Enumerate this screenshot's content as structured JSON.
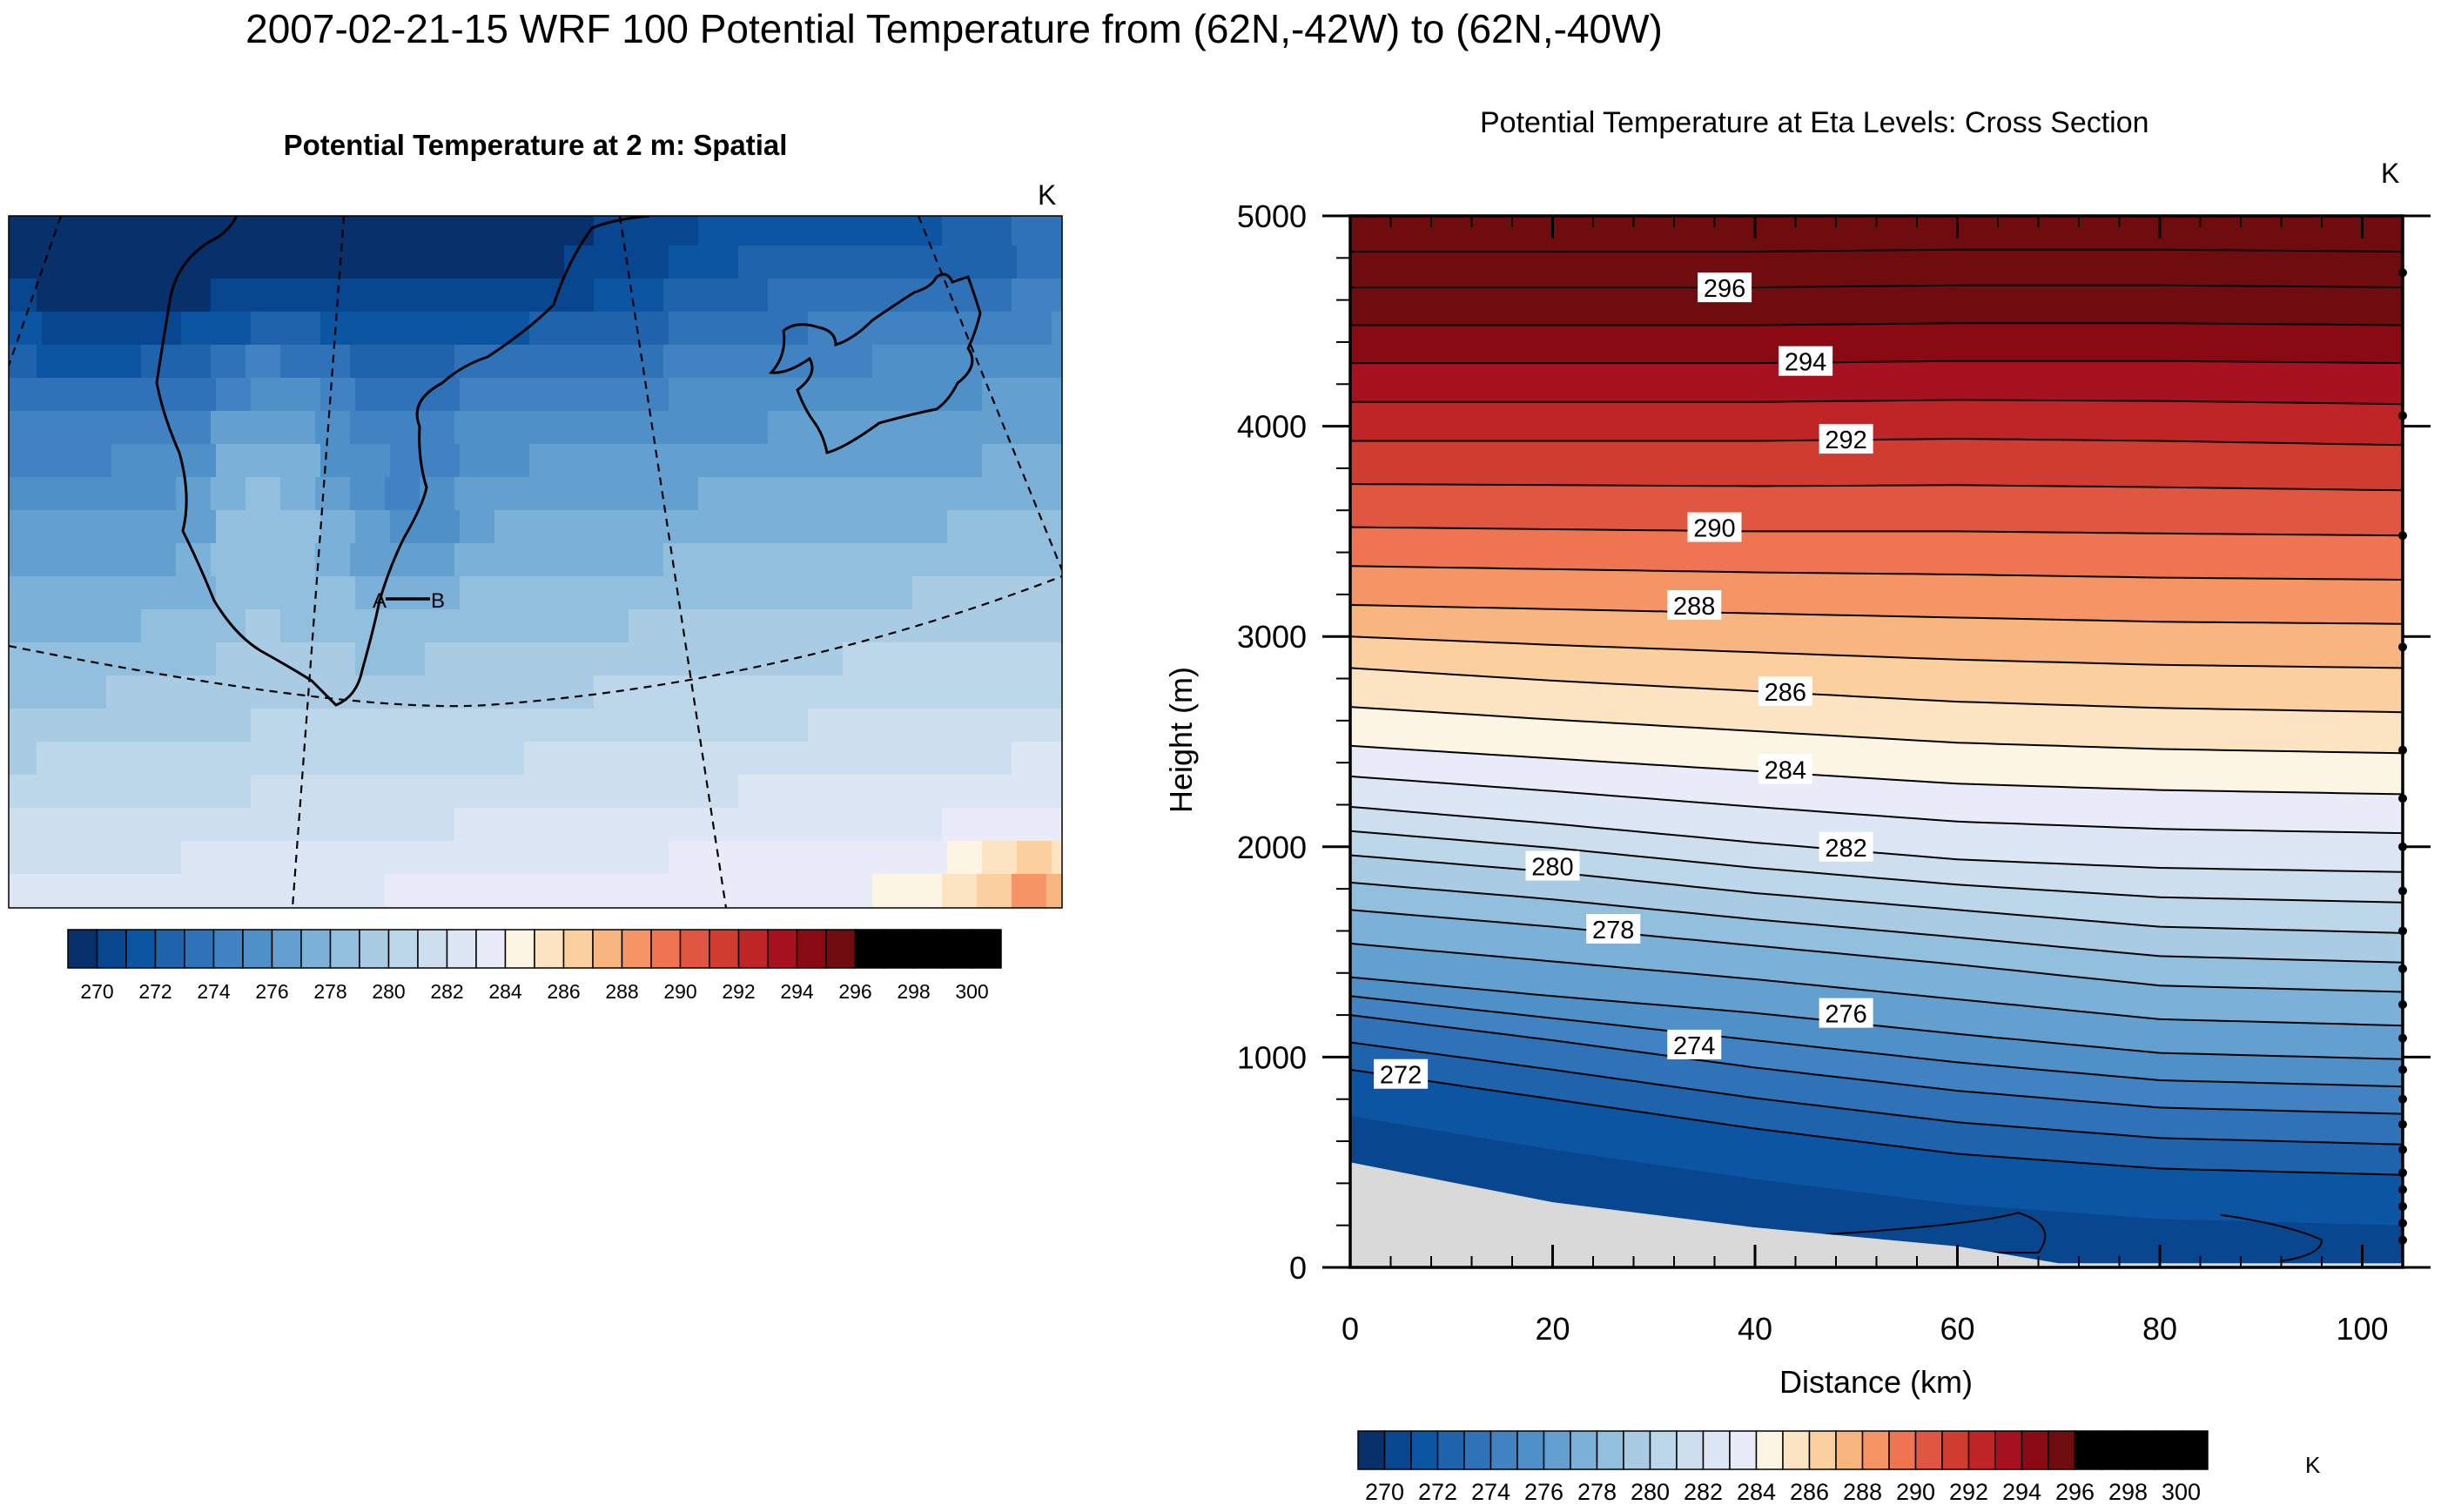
{
  "title": "2007-02-21-15 WRF 100 Potential Temperature from (62N,-42W) to (62N,-40W)",
  "left_panel": {
    "title": "Potential Temperature at 2 m: Spatial",
    "units": "K",
    "marker_a": "A",
    "marker_b": "B",
    "colorbar_ticks": [
      "270",
      "272",
      "274",
      "276",
      "278",
      "280",
      "282",
      "284",
      "286",
      "288",
      "290",
      "292",
      "294",
      "296",
      "298",
      "300"
    ]
  },
  "right_panel": {
    "title": "Potential Temperature at Eta Levels: Cross Section",
    "units": "K",
    "colorbar_units": "K",
    "colorbar_ticks": [
      "270",
      "272",
      "274",
      "276",
      "278",
      "280",
      "282",
      "284",
      "286",
      "288",
      "290",
      "292",
      "294",
      "296",
      "298",
      "300"
    ]
  },
  "palette": [
    "#08306b",
    "#08468f",
    "#0c55a3",
    "#1f63ad",
    "#2f72b8",
    "#4182c2",
    "#5090c9",
    "#63a0d0",
    "#7bb0d8",
    "#92bfde",
    "#a9cce4",
    "#bcd6ea",
    "#cddfee",
    "#dde6f4",
    "#e9ecf8",
    "#fdf5e4",
    "#fce4c2",
    "#fbcf9e",
    "#f8b57f",
    "#f59565",
    "#ee7452",
    "#e15640",
    "#d13c31",
    "#bf2527",
    "#a8111f",
    "#8a0a14",
    "#6e0c10"
  ],
  "chart_data": [
    {
      "type": "heatmap",
      "title": "Potential Temperature at 2 m: Spatial",
      "units": "K",
      "levels": [
        270,
        300
      ],
      "level_interval": 1,
      "colorbar_labels": [
        270,
        272,
        274,
        276,
        278,
        280,
        282,
        284,
        286,
        288,
        290,
        292,
        294,
        296,
        298,
        300
      ],
      "cross_section_endpoints": [
        "A",
        "B"
      ]
    },
    {
      "type": "contour",
      "title": "Potential Temperature at Eta Levels: Cross Section",
      "xlabel": "Distance (km)",
      "ylabel": "Height (m)",
      "units": "K",
      "xlim": [
        0,
        104
      ],
      "ylim": [
        0,
        5000
      ],
      "x_ticks": [
        0,
        20,
        40,
        60,
        80,
        100
      ],
      "y_ticks": [
        0,
        1000,
        2000,
        3000,
        4000,
        5000
      ],
      "contour_interval": 1,
      "contour_labels": [
        {
          "value": 272,
          "x": 5,
          "y": 920
        },
        {
          "value": 274,
          "x": 34,
          "y": 1060
        },
        {
          "value": 276,
          "x": 49,
          "y": 1210
        },
        {
          "value": 278,
          "x": 26,
          "y": 1610
        },
        {
          "value": 280,
          "x": 20,
          "y": 1910
        },
        {
          "value": 282,
          "x": 49,
          "y": 2000
        },
        {
          "value": 284,
          "x": 43,
          "y": 2370
        },
        {
          "value": 286,
          "x": 43,
          "y": 2740
        },
        {
          "value": 288,
          "x": 34,
          "y": 3150
        },
        {
          "value": 290,
          "x": 36,
          "y": 3520
        },
        {
          "value": 292,
          "x": 49,
          "y": 3940
        },
        {
          "value": 294,
          "x": 45,
          "y": 4310
        },
        {
          "value": 296,
          "x": 37,
          "y": 4660
        }
      ],
      "terrain_height_m": [
        [
          0,
          500
        ],
        [
          20,
          310
        ],
        [
          40,
          190
        ],
        [
          60,
          100
        ],
        [
          70,
          20
        ],
        [
          104,
          20
        ]
      ]
    }
  ]
}
